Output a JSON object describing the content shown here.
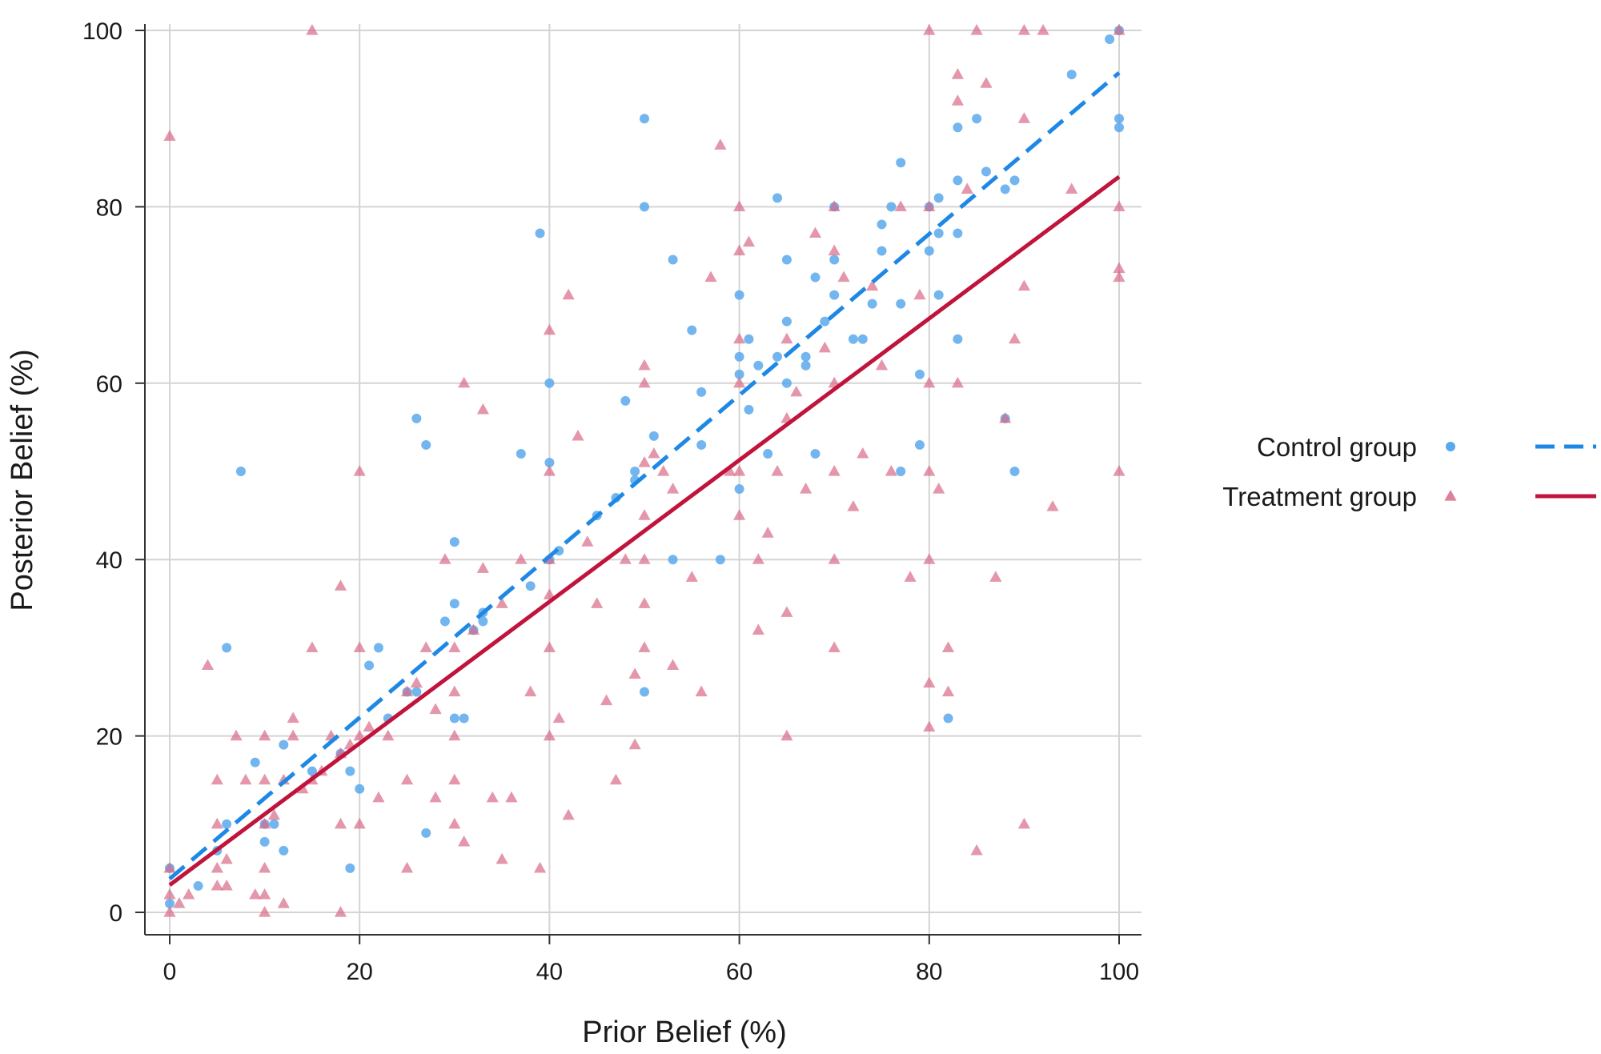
{
  "chart_data": {
    "type": "scatter",
    "title": "",
    "xlabel": "Prior Belief (%)",
    "ylabel": "Posterior Belief (%)",
    "xlim": [
      0,
      100
    ],
    "ylim": [
      0,
      100
    ],
    "x_ticks": [
      "0",
      "20",
      "40",
      "60",
      "80",
      "100"
    ],
    "y_ticks": [
      "0",
      "20",
      "40",
      "60",
      "80",
      "100"
    ],
    "grid": true,
    "legend_position": "right",
    "series": [
      {
        "name": "Control group",
        "marker": "circle",
        "color": "#5aa9ec",
        "fit_line": {
          "style": "dashed",
          "color": "#1e88e5",
          "x": [
            0,
            100
          ],
          "y": [
            3.8,
            95.2
          ]
        },
        "points": [
          [
            0,
            5
          ],
          [
            0,
            1
          ],
          [
            3,
            3
          ],
          [
            5,
            7
          ],
          [
            6,
            10
          ],
          [
            6,
            30
          ],
          [
            7.5,
            50
          ],
          [
            9,
            17
          ],
          [
            10,
            10
          ],
          [
            10,
            8
          ],
          [
            11,
            10
          ],
          [
            12,
            19
          ],
          [
            12,
            7
          ],
          [
            15,
            16
          ],
          [
            18,
            18
          ],
          [
            19,
            16
          ],
          [
            19,
            5
          ],
          [
            20,
            14
          ],
          [
            21,
            28
          ],
          [
            22,
            30
          ],
          [
            23,
            22
          ],
          [
            25,
            25
          ],
          [
            26,
            56
          ],
          [
            26,
            25
          ],
          [
            27,
            53
          ],
          [
            27,
            9
          ],
          [
            29,
            33
          ],
          [
            30,
            42
          ],
          [
            30,
            35
          ],
          [
            30,
            22
          ],
          [
            31,
            22
          ],
          [
            32,
            32
          ],
          [
            33,
            34
          ],
          [
            33,
            33
          ],
          [
            37,
            52
          ],
          [
            38,
            37
          ],
          [
            39,
            77
          ],
          [
            40,
            60
          ],
          [
            40,
            51
          ],
          [
            40,
            40
          ],
          [
            41,
            41
          ],
          [
            45,
            45
          ],
          [
            47,
            47
          ],
          [
            48,
            58
          ],
          [
            49,
            50
          ],
          [
            49,
            49
          ],
          [
            50,
            90
          ],
          [
            50,
            80
          ],
          [
            50,
            25
          ],
          [
            51,
            54
          ],
          [
            53,
            74
          ],
          [
            53,
            40
          ],
          [
            55,
            66
          ],
          [
            56,
            59
          ],
          [
            56,
            53
          ],
          [
            58,
            40
          ],
          [
            60,
            70
          ],
          [
            60,
            63
          ],
          [
            60,
            61
          ],
          [
            60,
            48
          ],
          [
            61,
            65
          ],
          [
            61,
            57
          ],
          [
            62,
            62
          ],
          [
            63,
            52
          ],
          [
            64,
            81
          ],
          [
            64,
            63
          ],
          [
            65,
            74
          ],
          [
            65,
            67
          ],
          [
            65,
            60
          ],
          [
            67,
            63
          ],
          [
            67,
            62
          ],
          [
            68,
            72
          ],
          [
            68,
            52
          ],
          [
            69,
            67
          ],
          [
            70,
            80
          ],
          [
            70,
            74
          ],
          [
            70,
            70
          ],
          [
            72,
            65
          ],
          [
            73,
            65
          ],
          [
            74,
            69
          ],
          [
            75,
            78
          ],
          [
            75,
            75
          ],
          [
            76,
            80
          ],
          [
            77,
            85
          ],
          [
            77,
            69
          ],
          [
            77,
            50
          ],
          [
            79,
            61
          ],
          [
            79,
            53
          ],
          [
            80,
            80
          ],
          [
            80,
            75
          ],
          [
            81,
            81
          ],
          [
            81,
            77
          ],
          [
            81,
            70
          ],
          [
            82,
            22
          ],
          [
            83,
            89
          ],
          [
            83,
            83
          ],
          [
            83,
            77
          ],
          [
            83,
            65
          ],
          [
            85,
            90
          ],
          [
            86,
            84
          ],
          [
            88,
            82
          ],
          [
            88,
            56
          ],
          [
            89,
            83
          ],
          [
            89,
            50
          ],
          [
            95,
            95
          ],
          [
            99,
            99
          ],
          [
            100,
            100
          ],
          [
            100,
            90
          ],
          [
            100,
            89
          ]
        ]
      },
      {
        "name": "Treatment group",
        "marker": "triangle",
        "color": "#d86a87",
        "fit_line": {
          "style": "solid",
          "color": "#c0143c",
          "x": [
            0,
            100
          ],
          "y": [
            3.1,
            83.4
          ]
        },
        "points": [
          [
            0,
            88
          ],
          [
            0,
            5
          ],
          [
            0,
            2
          ],
          [
            0,
            0
          ],
          [
            1,
            1
          ],
          [
            2,
            2
          ],
          [
            4,
            28
          ],
          [
            5,
            15
          ],
          [
            5,
            10
          ],
          [
            5,
            5
          ],
          [
            5,
            3
          ],
          [
            6,
            6
          ],
          [
            6,
            3
          ],
          [
            7,
            20
          ],
          [
            8,
            15
          ],
          [
            9,
            2
          ],
          [
            10,
            20
          ],
          [
            10,
            15
          ],
          [
            10,
            10
          ],
          [
            10,
            5
          ],
          [
            10,
            2
          ],
          [
            10,
            0
          ],
          [
            11,
            11
          ],
          [
            12,
            15
          ],
          [
            12,
            1
          ],
          [
            13,
            22
          ],
          [
            13,
            20
          ],
          [
            14,
            14
          ],
          [
            15,
            100
          ],
          [
            15,
            30
          ],
          [
            15,
            15
          ],
          [
            16,
            16
          ],
          [
            17,
            20
          ],
          [
            18,
            37
          ],
          [
            18,
            18
          ],
          [
            18,
            10
          ],
          [
            18,
            0
          ],
          [
            19,
            19
          ],
          [
            20,
            50
          ],
          [
            20,
            30
          ],
          [
            20,
            20
          ],
          [
            20,
            10
          ],
          [
            21,
            21
          ],
          [
            22,
            13
          ],
          [
            23,
            20
          ],
          [
            25,
            25
          ],
          [
            25,
            15
          ],
          [
            25,
            5
          ],
          [
            26,
            26
          ],
          [
            27,
            30
          ],
          [
            28,
            13
          ],
          [
            28,
            23
          ],
          [
            29,
            40
          ],
          [
            30,
            30
          ],
          [
            30,
            25
          ],
          [
            30,
            20
          ],
          [
            30,
            15
          ],
          [
            30,
            10
          ],
          [
            31,
            60
          ],
          [
            31,
            8
          ],
          [
            32,
            32
          ],
          [
            33,
            57
          ],
          [
            33,
            39
          ],
          [
            34,
            13
          ],
          [
            35,
            35
          ],
          [
            35,
            6
          ],
          [
            36,
            13
          ],
          [
            37,
            40
          ],
          [
            38,
            25
          ],
          [
            39,
            5
          ],
          [
            40,
            66
          ],
          [
            40,
            50
          ],
          [
            40,
            40
          ],
          [
            40,
            36
          ],
          [
            40,
            30
          ],
          [
            40,
            20
          ],
          [
            41,
            22
          ],
          [
            42,
            70
          ],
          [
            42,
            11
          ],
          [
            43,
            54
          ],
          [
            44,
            42
          ],
          [
            45,
            35
          ],
          [
            46,
            24
          ],
          [
            47,
            15
          ],
          [
            48,
            40
          ],
          [
            49,
            27
          ],
          [
            49,
            19
          ],
          [
            50,
            62
          ],
          [
            50,
            60
          ],
          [
            50,
            51
          ],
          [
            50,
            45
          ],
          [
            50,
            40
          ],
          [
            50,
            35
          ],
          [
            50,
            30
          ],
          [
            51,
            52
          ],
          [
            52,
            50
          ],
          [
            53,
            48
          ],
          [
            53,
            28
          ],
          [
            55,
            38
          ],
          [
            56,
            25
          ],
          [
            57,
            72
          ],
          [
            58,
            87
          ],
          [
            59,
            50
          ],
          [
            60,
            80
          ],
          [
            60,
            75
          ],
          [
            60,
            65
          ],
          [
            60,
            60
          ],
          [
            60,
            50
          ],
          [
            60,
            45
          ],
          [
            61,
            76
          ],
          [
            62,
            40
          ],
          [
            62,
            32
          ],
          [
            63,
            43
          ],
          [
            64,
            50
          ],
          [
            65,
            65
          ],
          [
            65,
            56
          ],
          [
            65,
            34
          ],
          [
            65,
            20
          ],
          [
            66,
            59
          ],
          [
            67,
            48
          ],
          [
            68,
            77
          ],
          [
            69,
            64
          ],
          [
            70,
            80
          ],
          [
            70,
            75
          ],
          [
            70,
            60
          ],
          [
            70,
            50
          ],
          [
            70,
            40
          ],
          [
            70,
            30
          ],
          [
            71,
            72
          ],
          [
            72,
            46
          ],
          [
            73,
            52
          ],
          [
            74,
            71
          ],
          [
            75,
            62
          ],
          [
            76,
            50
          ],
          [
            77,
            80
          ],
          [
            78,
            38
          ],
          [
            79,
            70
          ],
          [
            80,
            100
          ],
          [
            80,
            80
          ],
          [
            80,
            60
          ],
          [
            80,
            50
          ],
          [
            80,
            40
          ],
          [
            80,
            26
          ],
          [
            80,
            21
          ],
          [
            81,
            48
          ],
          [
            82,
            30
          ],
          [
            82,
            25
          ],
          [
            83,
            95
          ],
          [
            83,
            92
          ],
          [
            83,
            60
          ],
          [
            84,
            82
          ],
          [
            85,
            100
          ],
          [
            85,
            7
          ],
          [
            86,
            94
          ],
          [
            87,
            38
          ],
          [
            88,
            56
          ],
          [
            89,
            65
          ],
          [
            90,
            100
          ],
          [
            90,
            90
          ],
          [
            90,
            71
          ],
          [
            90,
            10
          ],
          [
            92,
            100
          ],
          [
            93,
            46
          ],
          [
            95,
            82
          ],
          [
            100,
            100
          ],
          [
            100,
            80
          ],
          [
            100,
            73
          ],
          [
            100,
            72
          ],
          [
            100,
            50
          ]
        ]
      }
    ]
  }
}
